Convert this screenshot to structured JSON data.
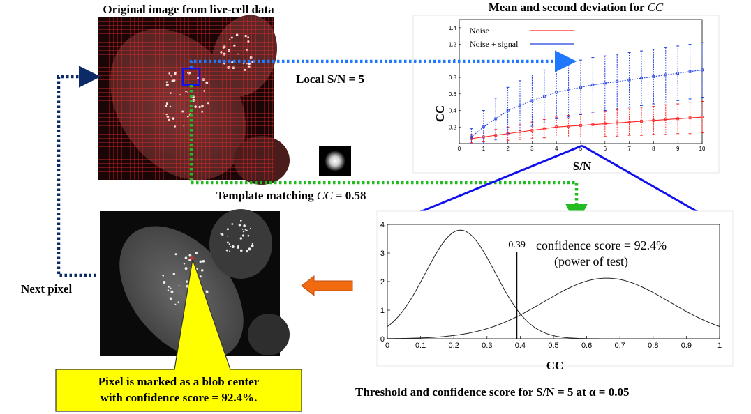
{
  "labels": {
    "original_title": "Original image from live-cell data",
    "mean_title": "Mean and second deviation for ",
    "mean_title_italic": "CC",
    "local_sn": "Local S/N = 5",
    "template_prefix": "Template matching ",
    "template_italic": "CC",
    "template_suffix": " = 0.58",
    "next_pixel": "Next pixel",
    "callout_line1": "Pixel is marked as a blob center",
    "callout_line2": "with confidence score = 92.4%.",
    "threshold_caption": "Threshold and confidence score for S/N = 5 at α = 0.05"
  },
  "colors": {
    "noise": "#ff2020",
    "noise_signal": "#2040e0",
    "arrow_blue": "#1f78ff",
    "arrow_navy": "#0b2a66",
    "arrow_green": "#22bb22",
    "zoom_line": "#1010ee",
    "callout_fill": "#ffff00",
    "left_arrow": "#f26a10"
  },
  "chart_data": [
    {
      "type": "line",
      "title": "Mean and second deviation for CC",
      "xlabel": "S/N",
      "ylabel": "CC",
      "xlim": [
        0,
        10
      ],
      "ylim": [
        0,
        1.5
      ],
      "x_ticks": [
        "0",
        "1",
        "2",
        "3",
        "4",
        "5",
        "6",
        "7",
        "8",
        "9",
        "10"
      ],
      "y_ticks": [
        "0.2",
        "0.4",
        "0.6",
        "0.8",
        "1",
        "1.2",
        "1.4"
      ],
      "legend": "top-left",
      "x": [
        0.5,
        1,
        1.5,
        2,
        2.5,
        3,
        3.5,
        4,
        4.5,
        5,
        5.5,
        6,
        6.5,
        7,
        7.5,
        8,
        8.5,
        9,
        9.5,
        10
      ],
      "series": [
        {
          "name": "Noise",
          "color": "#ff2020",
          "mean": [
            0.06,
            0.08,
            0.1,
            0.12,
            0.14,
            0.16,
            0.18,
            0.2,
            0.21,
            0.22,
            0.23,
            0.24,
            0.25,
            0.26,
            0.27,
            0.28,
            0.29,
            0.3,
            0.31,
            0.32
          ],
          "err": [
            0.05,
            0.06,
            0.07,
            0.08,
            0.09,
            0.1,
            0.11,
            0.12,
            0.13,
            0.14,
            0.15,
            0.15,
            0.16,
            0.16,
            0.17,
            0.17,
            0.18,
            0.18,
            0.19,
            0.19
          ]
        },
        {
          "name": "Noise + signal",
          "color": "#2040e0",
          "mean": [
            0.08,
            0.2,
            0.3,
            0.4,
            0.46,
            0.52,
            0.57,
            0.62,
            0.65,
            0.68,
            0.71,
            0.73,
            0.75,
            0.77,
            0.79,
            0.81,
            0.83,
            0.85,
            0.87,
            0.89
          ],
          "err": [
            0.1,
            0.2,
            0.25,
            0.28,
            0.3,
            0.31,
            0.32,
            0.32,
            0.33,
            0.33,
            0.33,
            0.33,
            0.33,
            0.33,
            0.33,
            0.33,
            0.33,
            0.33,
            0.33,
            0.33
          ]
        }
      ]
    },
    {
      "type": "line",
      "title": "Threshold and confidence score for S/N = 5 at α = 0.05",
      "xlabel": "CC",
      "ylabel": "",
      "xlim": [
        0,
        1
      ],
      "ylim": [
        0,
        4
      ],
      "x_ticks": [
        "0",
        "0.1",
        "0.2",
        "0.3",
        "0.4",
        "0.5",
        "0.6",
        "0.7",
        "0.8",
        "0.9",
        "1"
      ],
      "y_ticks": [
        "0",
        "1",
        "2",
        "3",
        "4"
      ],
      "threshold": 0.39,
      "threshold_label": "0.39",
      "annotation_line1": "confidence score = 92.4%",
      "annotation_line2": "(power of test)",
      "curves": [
        {
          "mu": 0.22,
          "sigma": 0.105,
          "peak": 3.8
        },
        {
          "mu": 0.66,
          "sigma": 0.19,
          "peak": 2.12
        }
      ]
    }
  ]
}
